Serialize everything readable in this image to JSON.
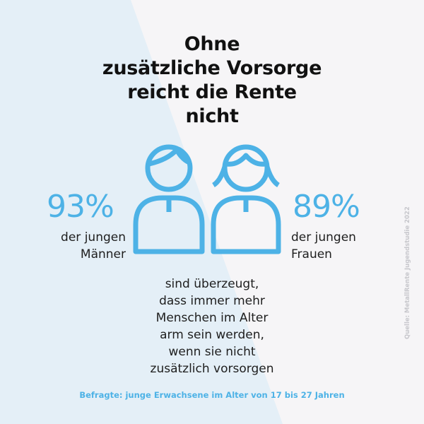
{
  "title": {
    "lines": [
      "Ohne",
      "zusätzliche Vorsorge",
      "reicht die Rente",
      "nicht"
    ]
  },
  "stats": {
    "men": {
      "value": "93%",
      "label_lines": [
        "der jungen",
        "Männer"
      ]
    },
    "women": {
      "value": "89%",
      "label_lines": [
        "der jungen",
        "Frauen"
      ]
    }
  },
  "statement": {
    "lines": [
      "sind überzeugt,",
      "dass immer mehr",
      "Menschen im Alter",
      "arm sein werden,",
      "wenn sie nicht",
      "zusätzlich vorsorgen"
    ]
  },
  "footnote": "Befragte: junge Erwachsene im Alter von 17 bis 27 Jahren",
  "source": "Quelle: MetallRente Jugendstudie 2022",
  "icons": {
    "left": "man-icon",
    "right": "woman-icon"
  },
  "colors": {
    "accent": "#4db2e6",
    "background": "#f6f5f7",
    "background_wedge": "#e4eff7",
    "text": "#1e1e1e",
    "title": "#111111",
    "source": "#c7c7cc"
  }
}
